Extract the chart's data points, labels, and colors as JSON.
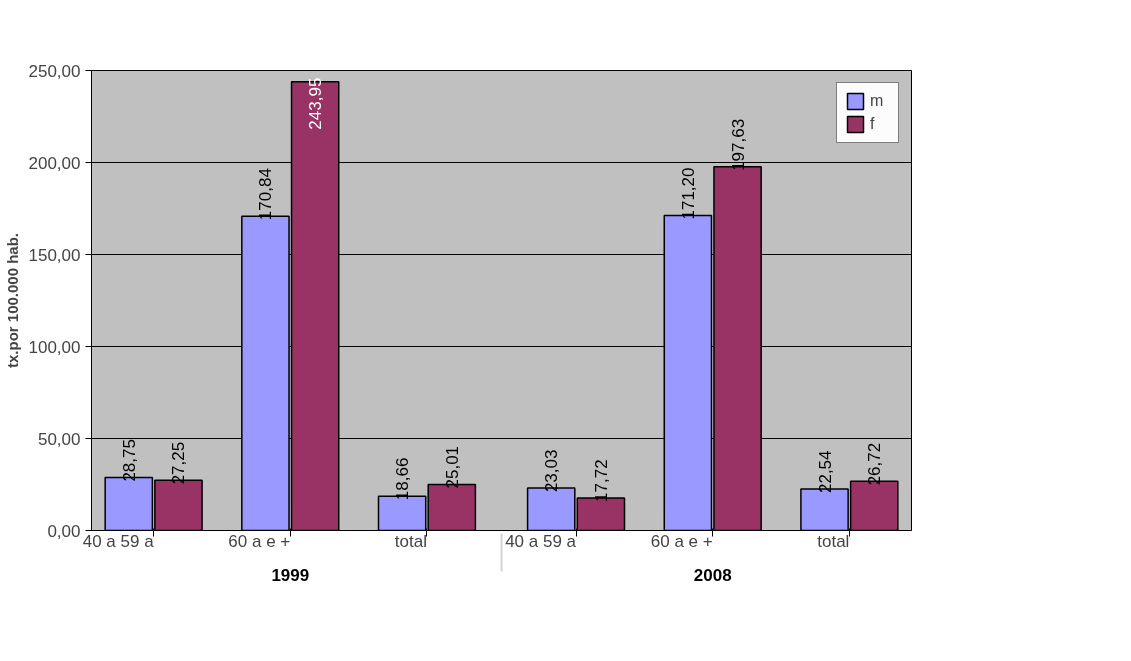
{
  "chart_data": {
    "type": "bar",
    "categories": [
      "40 a 59 a",
      "60 a e +",
      "total",
      "40 a 59 a",
      "60 a e +",
      "total"
    ],
    "annotations": [
      "1999",
      "2008"
    ],
    "ylabel": "tx.por 100.000 hab.",
    "series": [
      {
        "name": "m",
        "color": "#9999ff",
        "values": [
          28.75,
          170.84,
          18.66,
          23.03,
          171.2,
          22.54
        ],
        "value_labels": [
          "28,75",
          "170,84",
          "18,66",
          "23,03",
          "171,20",
          "22,54"
        ]
      },
      {
        "name": "f",
        "color": "#993366",
        "values": [
          27.25,
          243.95,
          25.01,
          17.72,
          197.63,
          26.72
        ],
        "value_labels": [
          "27,25",
          "243,95",
          "25,01",
          "17,72",
          "197,63",
          "26,72"
        ]
      }
    ],
    "ylim": [
      0,
      250
    ],
    "yticks": [
      {
        "value": 0,
        "label": "0,00"
      },
      {
        "value": 50,
        "label": "50,00"
      },
      {
        "value": 100,
        "label": "100,00"
      },
      {
        "value": 150,
        "label": "150,00"
      },
      {
        "value": 200,
        "label": "200,00"
      },
      {
        "value": 250,
        "label": "250,00"
      }
    ],
    "grid": "y",
    "legend": "top right"
  }
}
